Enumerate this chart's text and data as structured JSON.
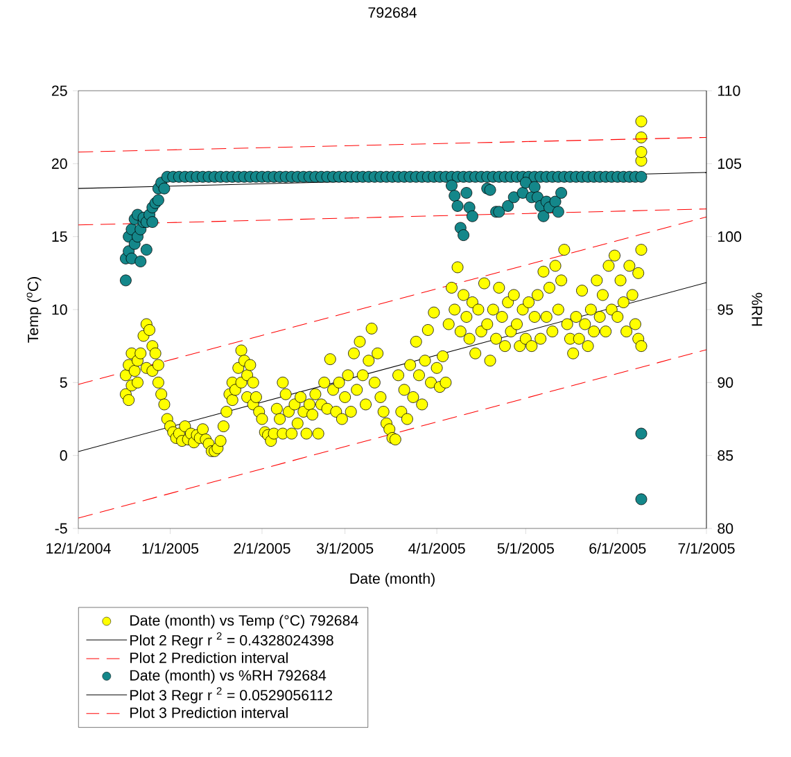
{
  "chart_data": {
    "type": "scatter",
    "title": "792684",
    "xlabel": "Date (month)",
    "ylabel": "Temp ($^{o}$C)",
    "y2label": "%RH",
    "xlim": [
      "2004-12-01",
      "2005-07-01"
    ],
    "xticks": [
      {
        "value": "2004-12-01",
        "label": "12/1/2004"
      },
      {
        "value": "2005-01-01",
        "label": "1/1/2005"
      },
      {
        "value": "2005-02-01",
        "label": "2/1/2005"
      },
      {
        "value": "2005-03-01",
        "label": "3/1/2005"
      },
      {
        "value": "2005-04-01",
        "label": "4/1/2005"
      },
      {
        "value": "2005-05-01",
        "label": "5/1/2005"
      },
      {
        "value": "2005-06-01",
        "label": "6/1/2005"
      },
      {
        "value": "2005-07-01",
        "label": "7/1/2005"
      }
    ],
    "ylim": [
      -5,
      25
    ],
    "yticks": [
      -5,
      0,
      5,
      10,
      15,
      20,
      25
    ],
    "y2lim": [
      80,
      110
    ],
    "y2ticks": [
      80,
      85,
      90,
      95,
      100,
      105,
      110
    ],
    "legend": "bottom left",
    "series": [
      {
        "name": "Date (month) vs Temp (°C) 792684",
        "marker": "circle",
        "color": "#ffff00",
        "x": [
          "2004-12-17",
          "2004-12-17",
          "2004-12-18",
          "2004-12-18",
          "2004-12-19",
          "2004-12-19",
          "2004-12-20",
          "2004-12-21",
          "2004-12-21",
          "2004-12-22",
          "2004-12-23",
          "2004-12-24",
          "2004-12-24",
          "2004-12-25",
          "2004-12-26",
          "2004-12-26",
          "2004-12-27",
          "2004-12-28",
          "2004-12-28",
          "2004-12-29",
          "2004-12-30",
          "2004-12-31",
          "2005-01-01",
          "2005-01-02",
          "2005-01-03",
          "2005-01-04",
          "2005-01-05",
          "2005-01-06",
          "2005-01-07",
          "2005-01-08",
          "2005-01-09",
          "2005-01-10",
          "2005-01-11",
          "2005-01-12",
          "2005-01-13",
          "2005-01-14",
          "2005-01-15",
          "2005-01-16",
          "2005-01-17",
          "2005-01-18",
          "2005-01-19",
          "2005-01-20",
          "2005-01-21",
          "2005-01-22",
          "2005-01-22",
          "2005-01-23",
          "2005-01-24",
          "2005-01-25",
          "2005-01-25",
          "2005-01-26",
          "2005-01-27",
          "2005-01-27",
          "2005-01-28",
          "2005-01-29",
          "2005-01-29",
          "2005-01-30",
          "2005-01-31",
          "2005-02-01",
          "2005-02-02",
          "2005-02-03",
          "2005-02-04",
          "2005-02-05",
          "2005-02-06",
          "2005-02-07",
          "2005-02-08",
          "2005-02-08",
          "2005-02-09",
          "2005-02-10",
          "2005-02-11",
          "2005-02-12",
          "2005-02-13",
          "2005-02-14",
          "2005-02-15",
          "2005-02-16",
          "2005-02-17",
          "2005-02-18",
          "2005-02-19",
          "2005-02-20",
          "2005-02-21",
          "2005-02-22",
          "2005-02-23",
          "2005-02-24",
          "2005-02-25",
          "2005-02-26",
          "2005-02-27",
          "2005-02-28",
          "2005-03-01",
          "2005-03-02",
          "2005-03-03",
          "2005-03-04",
          "2005-03-05",
          "2005-03-06",
          "2005-03-07",
          "2005-03-08",
          "2005-03-09",
          "2005-03-10",
          "2005-03-11",
          "2005-03-12",
          "2005-03-13",
          "2005-03-14",
          "2005-03-15",
          "2005-03-16",
          "2005-03-17",
          "2005-03-18",
          "2005-03-19",
          "2005-03-20",
          "2005-03-21",
          "2005-03-22",
          "2005-03-23",
          "2005-03-24",
          "2005-03-25",
          "2005-03-26",
          "2005-03-27",
          "2005-03-28",
          "2005-03-29",
          "2005-03-30",
          "2005-03-31",
          "2005-04-01",
          "2005-04-02",
          "2005-04-03",
          "2005-04-04",
          "2005-04-05",
          "2005-04-06",
          "2005-04-07",
          "2005-04-08",
          "2005-04-09",
          "2005-04-10",
          "2005-04-11",
          "2005-04-12",
          "2005-04-13",
          "2005-04-14",
          "2005-04-15",
          "2005-04-16",
          "2005-04-17",
          "2005-04-18",
          "2005-04-19",
          "2005-04-20",
          "2005-04-21",
          "2005-04-22",
          "2005-04-23",
          "2005-04-24",
          "2005-04-25",
          "2005-04-26",
          "2005-04-27",
          "2005-04-28",
          "2005-04-29",
          "2005-04-30",
          "2005-05-01",
          "2005-05-02",
          "2005-05-03",
          "2005-05-04",
          "2005-05-05",
          "2005-05-06",
          "2005-05-07",
          "2005-05-08",
          "2005-05-09",
          "2005-05-10",
          "2005-05-11",
          "2005-05-12",
          "2005-05-13",
          "2005-05-14",
          "2005-05-15",
          "2005-05-16",
          "2005-05-17",
          "2005-05-18",
          "2005-05-19",
          "2005-05-20",
          "2005-05-21",
          "2005-05-22",
          "2005-05-23",
          "2005-05-24",
          "2005-05-25",
          "2005-05-26",
          "2005-05-27",
          "2005-05-28",
          "2005-05-29",
          "2005-05-30",
          "2005-05-31",
          "2005-06-01",
          "2005-06-02",
          "2005-06-03",
          "2005-06-04",
          "2005-06-05",
          "2005-06-06",
          "2005-06-07",
          "2005-06-08",
          "2005-06-08",
          "2005-06-09",
          "2005-06-09",
          "2005-06-09",
          "2005-06-09",
          "2005-06-09",
          "2005-06-09"
        ],
        "values": [
          5.5,
          4.2,
          6.2,
          3.8,
          7.0,
          4.8,
          5.8,
          6.5,
          5.0,
          7.0,
          8.2,
          9.0,
          6.0,
          8.6,
          7.5,
          5.8,
          7.0,
          6.2,
          5.0,
          4.2,
          3.5,
          2.5,
          2.0,
          1.6,
          1.2,
          1.5,
          1.0,
          2.0,
          1.1,
          1.5,
          0.9,
          1.4,
          1.2,
          1.8,
          1.1,
          0.8,
          0.3,
          0.3,
          0.5,
          1.0,
          2.0,
          3.0,
          4.2,
          5.0,
          3.8,
          4.5,
          6.0,
          7.2,
          5.0,
          6.5,
          5.5,
          4.0,
          6.2,
          5.0,
          3.5,
          4.0,
          3.0,
          2.5,
          1.6,
          1.4,
          1.0,
          1.5,
          3.2,
          2.5,
          5.0,
          1.5,
          4.2,
          3.0,
          1.5,
          3.5,
          2.2,
          4.0,
          3.0,
          1.5,
          3.5,
          2.8,
          4.2,
          1.5,
          3.5,
          5.0,
          3.2,
          6.6,
          4.5,
          3.0,
          5.0,
          2.5,
          4.0,
          5.5,
          3.0,
          7.0,
          4.5,
          7.8,
          5.5,
          3.5,
          6.5,
          8.7,
          5.0,
          7.0,
          4.0,
          3.0,
          2.2,
          1.8,
          1.2,
          1.1,
          5.5,
          3.0,
          4.5,
          2.5,
          6.2,
          4.0,
          7.8,
          5.5,
          3.5,
          6.5,
          8.6,
          5.0,
          9.8,
          6.0,
          4.7,
          6.8,
          5.0,
          9.0,
          11.5,
          10.0,
          12.9,
          8.5,
          11.0,
          9.5,
          8.0,
          10.5,
          7.0,
          10.0,
          8.5,
          11.8,
          9.0,
          6.5,
          10.0,
          8.0,
          11.5,
          9.5,
          7.5,
          10.5,
          8.5,
          11.0,
          9.0,
          7.5,
          10.0,
          8.0,
          10.5,
          7.5,
          9.5,
          11.0,
          8.0,
          12.6,
          9.5,
          11.5,
          8.5,
          13.0,
          10.0,
          12.0,
          14.1,
          9.0,
          8.0,
          7.0,
          9.5,
          8.0,
          11.3,
          9.0,
          7.5,
          10.0,
          8.5,
          12.0,
          9.5,
          11.0,
          8.5,
          13.0,
          10.0,
          13.7,
          9.5,
          12.0,
          10.5,
          8.5,
          13.0,
          11.0,
          9.0,
          12.5,
          8.0,
          7.5,
          14.1,
          20.2,
          20.8,
          21.8,
          22.9
        ]
      },
      {
        "name": "Plot 2 Regr r $^{2}$ = 0.4328024398",
        "type": "line",
        "line_style": "solid",
        "color": "#000000",
        "x": [
          "2004-12-01",
          "2005-07-01"
        ],
        "values": [
          0.27,
          11.85
        ]
      },
      {
        "name": "Plot 2 Prediction interval",
        "type": "line",
        "line_style": "dashed",
        "color": "#ff0000",
        "x": [
          "2004-12-01",
          "2005-07-01"
        ],
        "values": [
          4.87,
          16.35
        ]
      },
      {
        "type": "line",
        "line_style": "dashed",
        "color": "#ff0000",
        "x": [
          "2004-12-01",
          "2005-07-01"
        ],
        "values": [
          -4.29,
          7.25
        ]
      },
      {
        "name": "Date (month) vs %RH 792684",
        "marker": "circle",
        "axis": "y2",
        "color": "#14878a",
        "x": [
          "2004-12-17",
          "2004-12-17",
          "2004-12-18",
          "2004-12-18",
          "2004-12-19",
          "2004-12-19",
          "2004-12-20",
          "2004-12-20",
          "2004-12-21",
          "2004-12-21",
          "2004-12-22",
          "2004-12-22",
          "2004-12-23",
          "2004-12-23",
          "2004-12-24",
          "2004-12-24",
          "2004-12-25",
          "2004-12-26",
          "2004-12-26",
          "2004-12-27",
          "2004-12-28",
          "2004-12-28",
          "2004-12-29",
          "2004-12-30",
          "2004-12-31",
          "2005-01-02",
          "2005-01-04",
          "2005-01-06",
          "2005-01-08",
          "2005-01-10",
          "2005-01-12",
          "2005-01-14",
          "2005-01-16",
          "2005-01-18",
          "2005-01-20",
          "2005-01-22",
          "2005-01-24",
          "2005-01-26",
          "2005-01-28",
          "2005-01-30",
          "2005-02-01",
          "2005-02-03",
          "2005-02-05",
          "2005-02-07",
          "2005-02-09",
          "2005-02-11",
          "2005-02-13",
          "2005-02-15",
          "2005-02-17",
          "2005-02-19",
          "2005-02-21",
          "2005-02-23",
          "2005-02-25",
          "2005-02-27",
          "2005-03-01",
          "2005-03-03",
          "2005-03-05",
          "2005-03-07",
          "2005-03-09",
          "2005-03-11",
          "2005-03-13",
          "2005-03-15",
          "2005-03-17",
          "2005-03-19",
          "2005-03-21",
          "2005-03-23",
          "2005-03-25",
          "2005-03-27",
          "2005-03-29",
          "2005-03-31",
          "2005-04-02",
          "2005-04-04",
          "2005-04-06",
          "2005-04-08",
          "2005-04-10",
          "2005-04-12",
          "2005-04-14",
          "2005-04-16",
          "2005-04-18",
          "2005-04-20",
          "2005-04-22",
          "2005-04-24",
          "2005-04-26",
          "2005-04-28",
          "2005-04-30",
          "2005-05-02",
          "2005-05-04",
          "2005-05-06",
          "2005-05-08",
          "2005-05-10",
          "2005-05-12",
          "2005-05-14",
          "2005-05-16",
          "2005-05-18",
          "2005-05-20",
          "2005-05-22",
          "2005-05-24",
          "2005-05-26",
          "2005-05-28",
          "2005-05-30",
          "2005-06-01",
          "2005-06-03",
          "2005-06-05",
          "2005-06-07",
          "2005-06-09",
          "2005-04-06",
          "2005-04-07",
          "2005-04-08",
          "2005-04-09",
          "2005-04-10",
          "2005-04-11",
          "2005-04-12",
          "2005-04-13",
          "2005-04-18",
          "2005-04-19",
          "2005-04-21",
          "2005-04-22",
          "2005-04-25",
          "2005-04-27",
          "2005-04-30",
          "2005-05-01",
          "2005-05-03",
          "2005-05-04",
          "2005-05-05",
          "2005-05-06",
          "2005-05-07",
          "2005-05-08",
          "2005-05-09",
          "2005-05-11",
          "2005-05-12",
          "2005-05-13",
          "2005-06-09",
          "2005-06-09"
        ],
        "values": [
          97.0,
          98.5,
          99.0,
          100.0,
          98.5,
          100.5,
          99.5,
          101.2,
          100.0,
          101.5,
          98.3,
          100.5,
          101.0,
          101.3,
          99.1,
          101.0,
          101.5,
          102.0,
          101.0,
          102.3,
          102.5,
          103.3,
          103.7,
          103.3,
          104.1,
          104.1,
          104.1,
          104.1,
          104.1,
          104.1,
          104.1,
          104.1,
          104.1,
          104.1,
          104.1,
          104.1,
          104.1,
          104.1,
          104.1,
          104.1,
          104.1,
          104.1,
          104.1,
          104.1,
          104.1,
          104.1,
          104.1,
          104.1,
          104.1,
          104.1,
          104.1,
          104.1,
          104.1,
          104.1,
          104.1,
          104.1,
          104.1,
          104.1,
          104.1,
          104.1,
          104.1,
          104.1,
          104.1,
          104.1,
          104.1,
          104.1,
          104.1,
          104.1,
          104.1,
          104.1,
          104.1,
          104.1,
          104.1,
          104.1,
          104.1,
          104.1,
          104.1,
          104.1,
          104.1,
          104.1,
          104.1,
          104.1,
          104.1,
          104.1,
          104.1,
          104.1,
          104.1,
          104.1,
          104.1,
          104.1,
          104.1,
          104.1,
          104.1,
          104.1,
          104.1,
          104.1,
          104.1,
          104.1,
          104.1,
          104.1,
          104.1,
          104.1,
          104.1,
          104.1,
          104.1,
          103.5,
          102.8,
          102.1,
          100.6,
          100.1,
          103.0,
          102.0,
          101.4,
          103.3,
          103.2,
          101.7,
          101.7,
          102.1,
          102.7,
          103.0,
          103.7,
          102.7,
          103.4,
          102.7,
          102.1,
          101.4,
          102.4,
          102.0,
          102.4,
          101.7,
          103.0,
          86.5,
          82.0
        ]
      },
      {
        "name": "Plot 3 Regr r $^{2}$ = 0.0529056112",
        "type": "line",
        "line_style": "solid",
        "axis": "y2",
        "color": "#000000",
        "x": [
          "2004-12-01",
          "2005-07-01"
        ],
        "values": [
          103.3,
          104.4
        ]
      },
      {
        "name": "Plot 3 Prediction interval",
        "type": "line",
        "line_style": "dashed",
        "axis": "y2",
        "color": "#ff0000",
        "x": [
          "2004-12-01",
          "2005-07-01"
        ],
        "values": [
          105.8,
          106.8
        ]
      },
      {
        "type": "line",
        "line_style": "dashed",
        "axis": "y2",
        "color": "#ff0000",
        "x": [
          "2004-12-01",
          "2005-07-01"
        ],
        "values": [
          100.8,
          101.9
        ]
      }
    ]
  }
}
